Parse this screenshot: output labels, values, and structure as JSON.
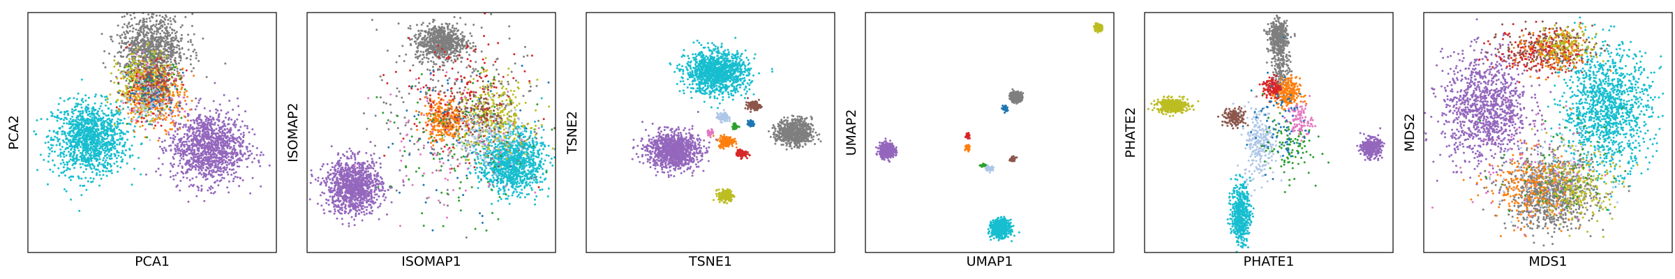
{
  "palette": {
    "blue": "#1f77b4",
    "orange": "#ff7f0e",
    "green": "#2ca02c",
    "red": "#d62728",
    "purple": "#9467bd",
    "brown": "#8c564b",
    "pink": "#e377c2",
    "gray": "#7f7f7f",
    "olive": "#bcbd22",
    "cyan": "#17becf",
    "lightblue": "#aec7e8"
  },
  "chart_data": [
    {
      "type": "scatter",
      "name": "pca",
      "xlabel": "PCA1",
      "ylabel": "PCA2",
      "xlim": [
        -4,
        4
      ],
      "ylim": [
        -4,
        4
      ],
      "clusters": [
        {
          "color": "cyan",
          "cx": -2.0,
          "cy": -0.2,
          "sx": 0.6,
          "sy": 0.6,
          "n": 1200
        },
        {
          "color": "purple",
          "cx": 1.8,
          "cy": -0.5,
          "sx": 0.6,
          "sy": 0.6,
          "n": 1200
        },
        {
          "color": "gray",
          "cx": 0.0,
          "cy": 2.8,
          "sx": 0.55,
          "sy": 0.55,
          "n": 900
        },
        {
          "color": "olive",
          "cx": -0.2,
          "cy": 1.6,
          "sx": 0.45,
          "sy": 0.5,
          "n": 400
        },
        {
          "color": "orange",
          "cx": 0.1,
          "cy": 1.2,
          "sx": 0.5,
          "sy": 0.5,
          "n": 300
        },
        {
          "color": "red",
          "cx": -0.1,
          "cy": 1.4,
          "sx": 0.5,
          "sy": 0.5,
          "n": 120
        },
        {
          "color": "pink",
          "cx": 0.0,
          "cy": 1.3,
          "sx": 0.5,
          "sy": 0.5,
          "n": 80
        },
        {
          "color": "green",
          "cx": 0.0,
          "cy": 1.5,
          "sx": 0.5,
          "sy": 0.5,
          "n": 60
        },
        {
          "color": "brown",
          "cx": 0.1,
          "cy": 1.7,
          "sx": 0.4,
          "sy": 0.4,
          "n": 120
        },
        {
          "color": "lightblue",
          "cx": -0.1,
          "cy": 1.1,
          "sx": 0.4,
          "sy": 0.4,
          "n": 100
        },
        {
          "color": "blue",
          "cx": 0.0,
          "cy": 1.3,
          "sx": 0.4,
          "sy": 0.4,
          "n": 60
        }
      ]
    },
    {
      "type": "scatter",
      "name": "isomap",
      "xlabel": "ISOMAP1",
      "ylabel": "ISOMAP2",
      "xlim": [
        -4,
        4
      ],
      "ylim": [
        -4,
        4
      ],
      "clusters": [
        {
          "color": "purple",
          "cx": -2.5,
          "cy": -1.8,
          "sx": 0.45,
          "sy": 0.45,
          "n": 1100
        },
        {
          "color": "cyan",
          "cx": 2.6,
          "cy": -1.0,
          "sx": 0.5,
          "sy": 0.5,
          "n": 1100
        },
        {
          "color": "gray",
          "cx": 0.3,
          "cy": 3.0,
          "sx": 0.4,
          "sy": 0.3,
          "n": 700
        },
        {
          "color": "gray",
          "cx": 1.0,
          "cy": 0.8,
          "sx": 1.4,
          "sy": 1.4,
          "n": 250
        },
        {
          "color": "orange",
          "cx": 0.4,
          "cy": 0.4,
          "sx": 0.3,
          "sy": 0.35,
          "n": 300
        },
        {
          "color": "olive",
          "cx": 2.0,
          "cy": 0.5,
          "sx": 0.6,
          "sy": 0.6,
          "n": 350
        },
        {
          "color": "red",
          "cx": 0.9,
          "cy": 1.2,
          "sx": 1.0,
          "sy": 1.0,
          "n": 150
        },
        {
          "color": "brown",
          "cx": 1.4,
          "cy": 0.6,
          "sx": 0.6,
          "sy": 0.5,
          "n": 150
        },
        {
          "color": "lightblue",
          "cx": 1.8,
          "cy": -0.2,
          "sx": 0.6,
          "sy": 0.5,
          "n": 150
        },
        {
          "color": "green",
          "cx": 0.8,
          "cy": -0.5,
          "sx": 1.2,
          "sy": 1.2,
          "n": 100
        },
        {
          "color": "pink",
          "cx": 0.6,
          "cy": -0.3,
          "sx": 1.2,
          "sy": 1.2,
          "n": 80
        },
        {
          "color": "blue",
          "cx": 0.8,
          "cy": 0.0,
          "sx": 1.2,
          "sy": 1.2,
          "n": 60
        }
      ]
    },
    {
      "type": "scatter",
      "name": "tsne",
      "xlabel": "TSNE1",
      "ylabel": "TSNE2",
      "xlim": [
        -4,
        4
      ],
      "ylim": [
        -4,
        4
      ],
      "clusters": [
        {
          "color": "cyan",
          "cx": 0.2,
          "cy": 2.0,
          "sx": 0.5,
          "sy": 0.35,
          "n": 1200
        },
        {
          "color": "purple",
          "cx": -1.2,
          "cy": -0.6,
          "sx": 0.42,
          "sy": 0.3,
          "n": 1100
        },
        {
          "color": "gray",
          "cx": 2.7,
          "cy": 0.0,
          "sx": 0.28,
          "sy": 0.22,
          "n": 700
        },
        {
          "color": "olive",
          "cx": 0.5,
          "cy": -2.1,
          "sx": 0.12,
          "sy": 0.1,
          "n": 200
        },
        {
          "color": "orange",
          "cx": 0.5,
          "cy": -0.3,
          "sx": 0.12,
          "sy": 0.09,
          "n": 200
        },
        {
          "color": "brown",
          "cx": 1.4,
          "cy": 0.9,
          "sx": 0.1,
          "sy": 0.07,
          "n": 150
        },
        {
          "color": "red",
          "cx": 1.0,
          "cy": -0.7,
          "sx": 0.08,
          "sy": 0.06,
          "n": 120
        },
        {
          "color": "lightblue",
          "cx": 0.4,
          "cy": 0.5,
          "sx": 0.09,
          "sy": 0.07,
          "n": 120
        },
        {
          "color": "blue",
          "cx": 1.3,
          "cy": 0.3,
          "sx": 0.05,
          "sy": 0.05,
          "n": 60
        },
        {
          "color": "pink",
          "cx": 0.0,
          "cy": 0.0,
          "sx": 0.05,
          "sy": 0.05,
          "n": 40
        },
        {
          "color": "green",
          "cx": 0.8,
          "cy": 0.2,
          "sx": 0.05,
          "sy": 0.05,
          "n": 40
        }
      ]
    },
    {
      "type": "scatter",
      "name": "umap",
      "xlabel": "UMAP1",
      "ylabel": "UMAP2",
      "xlim": [
        -4,
        4
      ],
      "ylim": [
        -4,
        4
      ],
      "clusters": [
        {
          "color": "purple",
          "cx": -3.3,
          "cy": -0.6,
          "sx": 0.12,
          "sy": 0.12,
          "n": 500
        },
        {
          "color": "cyan",
          "cx": 0.35,
          "cy": -3.2,
          "sx": 0.14,
          "sy": 0.14,
          "n": 700
        },
        {
          "color": "gray",
          "cx": 0.85,
          "cy": 1.2,
          "sx": 0.09,
          "sy": 0.08,
          "n": 400
        },
        {
          "color": "olive",
          "cx": 3.5,
          "cy": 3.5,
          "sx": 0.06,
          "sy": 0.05,
          "n": 200
        },
        {
          "color": "orange",
          "cx": -0.7,
          "cy": -0.5,
          "sx": 0.04,
          "sy": 0.05,
          "n": 60
        },
        {
          "color": "red",
          "cx": -0.7,
          "cy": -0.1,
          "sx": 0.03,
          "sy": 0.05,
          "n": 40
        },
        {
          "color": "lightblue",
          "cx": 0.0,
          "cy": -1.2,
          "sx": 0.06,
          "sy": 0.04,
          "n": 60
        },
        {
          "color": "brown",
          "cx": 0.75,
          "cy": -0.9,
          "sx": 0.05,
          "sy": 0.04,
          "n": 40
        },
        {
          "color": "blue",
          "cx": 0.5,
          "cy": 0.8,
          "sx": 0.04,
          "sy": 0.06,
          "n": 40
        },
        {
          "color": "green",
          "cx": -0.2,
          "cy": -1.1,
          "sx": 0.05,
          "sy": 0.03,
          "n": 30
        }
      ]
    },
    {
      "type": "scatter",
      "name": "phate",
      "xlabel": "PHATE1",
      "ylabel": "PHATE2",
      "xlim": [
        -4,
        4
      ],
      "ylim": [
        -4,
        4
      ],
      "clusters": [
        {
          "color": "gray",
          "cx": 0.3,
          "cy": 3.2,
          "sx": 0.15,
          "sy": 0.25,
          "n": 400
        },
        {
          "color": "gray",
          "cx": 0.4,
          "cy": 2.2,
          "sx": 0.15,
          "sy": 0.5,
          "n": 200
        },
        {
          "color": "olive",
          "cx": -3.1,
          "cy": 0.9,
          "sx": 0.25,
          "sy": 0.12,
          "n": 400
        },
        {
          "color": "purple",
          "cx": 3.3,
          "cy": -0.5,
          "sx": 0.15,
          "sy": 0.15,
          "n": 400
        },
        {
          "color": "cyan",
          "cx": -0.9,
          "cy": -2.7,
          "sx": 0.15,
          "sy": 0.5,
          "n": 500
        },
        {
          "color": "brown",
          "cx": -1.1,
          "cy": 0.5,
          "sx": 0.18,
          "sy": 0.15,
          "n": 150
        },
        {
          "color": "orange",
          "cx": 0.6,
          "cy": 1.3,
          "sx": 0.2,
          "sy": 0.25,
          "n": 250
        },
        {
          "color": "red",
          "cx": 0.1,
          "cy": 1.5,
          "sx": 0.15,
          "sy": 0.2,
          "n": 120
        },
        {
          "color": "lightblue",
          "cx": -0.3,
          "cy": -0.3,
          "sx": 0.25,
          "sy": 0.6,
          "n": 250
        },
        {
          "color": "pink",
          "cx": 1.0,
          "cy": 0.4,
          "sx": 0.2,
          "sy": 0.3,
          "n": 100
        },
        {
          "color": "green",
          "cx": 0.6,
          "cy": -0.5,
          "sx": 0.4,
          "sy": 0.5,
          "n": 100
        },
        {
          "color": "blue",
          "cx": 0.3,
          "cy": 0.3,
          "sx": 0.5,
          "sy": 0.8,
          "n": 80
        }
      ]
    },
    {
      "type": "scatter",
      "name": "mds",
      "xlabel": "MDS1",
      "ylabel": "MDS2",
      "xlim": [
        -4,
        4
      ],
      "ylim": [
        -4,
        4
      ],
      "clusters": [
        {
          "color": "purple",
          "cx": -2.0,
          "cy": 0.8,
          "sx": 0.7,
          "sy": 0.9,
          "n": 1100
        },
        {
          "color": "cyan",
          "cx": 1.9,
          "cy": 0.8,
          "sx": 0.7,
          "sy": 1.0,
          "n": 1200
        },
        {
          "color": "gray",
          "cx": 0.1,
          "cy": -2.0,
          "sx": 0.7,
          "sy": 0.6,
          "n": 900
        },
        {
          "color": "olive",
          "cx": 0.9,
          "cy": -1.8,
          "sx": 0.6,
          "sy": 0.6,
          "n": 250
        },
        {
          "color": "orange",
          "cx": -0.6,
          "cy": -1.8,
          "sx": 0.7,
          "sy": 0.6,
          "n": 250
        },
        {
          "color": "brown",
          "cx": 0.0,
          "cy": 2.8,
          "sx": 0.7,
          "sy": 0.35,
          "n": 300
        },
        {
          "color": "red",
          "cx": -0.3,
          "cy": 2.7,
          "sx": 0.7,
          "sy": 0.4,
          "n": 150
        },
        {
          "color": "olive",
          "cx": 0.6,
          "cy": 2.9,
          "sx": 0.5,
          "sy": 0.3,
          "n": 150
        },
        {
          "color": "orange",
          "cx": 0.2,
          "cy": 2.6,
          "sx": 0.6,
          "sy": 0.4,
          "n": 100
        },
        {
          "color": "lightblue",
          "cx": 0.0,
          "cy": -1.5,
          "sx": 0.8,
          "sy": 0.8,
          "n": 100
        },
        {
          "color": "green",
          "cx": 0.4,
          "cy": -1.2,
          "sx": 1.0,
          "sy": 1.0,
          "n": 60
        },
        {
          "color": "pink",
          "cx": -0.4,
          "cy": -1.0,
          "sx": 1.0,
          "sy": 1.0,
          "n": 60
        }
      ]
    }
  ]
}
